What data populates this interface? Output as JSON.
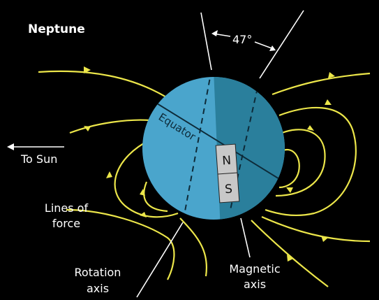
{
  "title": "Neptune",
  "angle_label": "47°",
  "labels": {
    "to_sun": "To Sun",
    "equator": "Equator",
    "north": "N",
    "south": "S",
    "lines_of_force": [
      "Lines of",
      "force"
    ],
    "rotation_axis": [
      "Rotation",
      "axis"
    ],
    "magnetic_axis": [
      "Magnetic",
      "axis"
    ]
  }
}
